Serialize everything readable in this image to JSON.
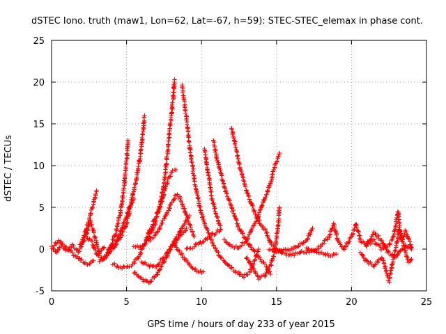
{
  "chart_data": {
    "type": "scatter",
    "title": "dSTEC Iono. truth (maw1, Lon=62, Lat=-67, h=59): STEC-STEC_elemax in phase cont.",
    "xlabel": "GPS time / hours of day 233 of year 2015",
    "ylabel": "dSTEC  / TECUs",
    "xlim": [
      0,
      25
    ],
    "ylim": [
      -5,
      25
    ],
    "xticks": [
      "0",
      "5",
      "10",
      "15",
      "20",
      "25"
    ],
    "yticks": [
      "-5",
      "0",
      "5",
      "10",
      "15",
      "20",
      "25"
    ],
    "grid": true,
    "marker": "plus",
    "colors": {
      "points": "#ff0000",
      "axes": "#000000",
      "grid": "#a0a0a0"
    },
    "series": [
      {
        "values": [
          [
            0,
            0.3
          ],
          [
            0.3,
            -0.4
          ],
          [
            0.6,
            0.5
          ],
          [
            1.0,
            -0.2
          ],
          [
            1.4,
            0.4
          ],
          [
            1.8,
            -0.3
          ],
          [
            2.2,
            1.2
          ],
          [
            2.6,
            3.3
          ],
          [
            2.9,
            1.5
          ],
          [
            3.2,
            -0.5
          ],
          [
            3.5,
            0.2
          ]
        ]
      },
      {
        "values": [
          [
            0.2,
            0.5
          ],
          [
            0.5,
            1.0
          ],
          [
            0.9,
            0.2
          ],
          [
            1.3,
            -0.4
          ],
          [
            1.7,
            -1.0
          ],
          [
            2.1,
            -1.5
          ],
          [
            2.5,
            -1.8
          ],
          [
            2.8,
            -1.4
          ]
        ]
      },
      {
        "values": [
          [
            1.9,
            0.4
          ],
          [
            2.2,
            1.8
          ],
          [
            2.5,
            3.5
          ],
          [
            2.8,
            5.5
          ],
          [
            3.0,
            7.0
          ]
        ]
      },
      {
        "values": [
          [
            2.3,
            1.5
          ],
          [
            2.7,
            0.8
          ],
          [
            3.0,
            -0.5
          ],
          [
            3.4,
            -1.2
          ],
          [
            3.8,
            -0.6
          ],
          [
            4.2,
            0.5
          ],
          [
            4.6,
            2.0
          ],
          [
            4.9,
            3.5
          ],
          [
            5.2,
            5.0
          ],
          [
            5.5,
            6.0
          ]
        ]
      },
      {
        "values": [
          [
            3.2,
            -1.5
          ],
          [
            3.6,
            -0.8
          ],
          [
            4.0,
            0.5
          ],
          [
            4.3,
            2.0
          ],
          [
            4.6,
            4.5
          ],
          [
            4.8,
            7.0
          ],
          [
            5.0,
            10.5
          ],
          [
            5.1,
            13.0
          ]
        ]
      },
      {
        "values": [
          [
            3.8,
            -0.2
          ],
          [
            4.2,
            0.3
          ],
          [
            4.6,
            1.5
          ],
          [
            5.0,
            3.0
          ],
          [
            5.3,
            5.5
          ],
          [
            5.6,
            8.0
          ],
          [
            5.9,
            11.0
          ],
          [
            6.1,
            14.0
          ],
          [
            6.2,
            16.0
          ]
        ]
      },
      {
        "values": [
          [
            4.1,
            -1.8
          ],
          [
            4.6,
            -2.2
          ],
          [
            5.0,
            -2.2
          ],
          [
            5.4,
            -1.8
          ],
          [
            5.8,
            -1.0
          ],
          [
            6.2,
            0.5
          ],
          [
            6.6,
            2.5
          ],
          [
            7.0,
            4.0
          ],
          [
            7.4,
            6.0
          ],
          [
            7.7,
            8.0
          ],
          [
            8.0,
            9.2
          ],
          [
            8.3,
            9.5
          ]
        ]
      },
      {
        "values": [
          [
            5.5,
            0.4
          ],
          [
            6.0,
            0.2
          ],
          [
            6.5,
            1.5
          ],
          [
            6.9,
            3.0
          ],
          [
            7.2,
            5.0
          ],
          [
            7.5,
            8.0
          ],
          [
            7.7,
            11.0
          ],
          [
            7.9,
            14.5
          ],
          [
            8.1,
            18.0
          ],
          [
            8.2,
            20.3
          ]
        ]
      },
      {
        "values": [
          [
            5.5,
            -2.8
          ],
          [
            6.0,
            -3.5
          ],
          [
            6.5,
            -4.1
          ],
          [
            7.0,
            -3.0
          ],
          [
            7.5,
            -1.5
          ],
          [
            8.0,
            0.3
          ],
          [
            8.5,
            2.0
          ],
          [
            9.0,
            3.5
          ],
          [
            9.2,
            4.0
          ]
        ]
      },
      {
        "values": [
          [
            6.0,
            -1.5
          ],
          [
            6.5,
            -2.0
          ],
          [
            7.0,
            -2.0
          ],
          [
            7.5,
            -1.0
          ],
          [
            8.0,
            0.2
          ],
          [
            8.5,
            1.5
          ],
          [
            9.0,
            2.5
          ]
        ]
      },
      {
        "values": [
          [
            6.5,
            1.0
          ],
          [
            6.8,
            1.5
          ],
          [
            7.2,
            2.5
          ],
          [
            7.6,
            4.0
          ],
          [
            8.0,
            5.5
          ],
          [
            8.3,
            6.5
          ],
          [
            8.6,
            6.0
          ],
          [
            9.0,
            4.0
          ],
          [
            9.5,
            1.5
          ]
        ]
      },
      {
        "values": [
          [
            8.7,
            19.5
          ],
          [
            8.9,
            17.0
          ],
          [
            9.1,
            14.0
          ],
          [
            9.3,
            11.0
          ],
          [
            9.6,
            7.5
          ],
          [
            9.9,
            5.0
          ],
          [
            10.3,
            2.5
          ],
          [
            10.8,
            0.5
          ],
          [
            11.3,
            -1.0
          ],
          [
            11.8,
            -2.0
          ],
          [
            12.3,
            -2.7
          ],
          [
            12.8,
            -3.2
          ],
          [
            13.2,
            -2.8
          ],
          [
            13.5,
            -1.5
          ],
          [
            13.8,
            0.0
          ]
        ]
      },
      {
        "values": [
          [
            8.2,
            0.5
          ],
          [
            8.6,
            -0.5
          ],
          [
            9.0,
            -1.5
          ],
          [
            9.4,
            -2.3
          ],
          [
            9.8,
            -2.7
          ],
          [
            10.1,
            -2.7
          ]
        ]
      },
      {
        "values": [
          [
            9.0,
            0.0
          ],
          [
            9.5,
            0.3
          ],
          [
            10.0,
            0.8
          ],
          [
            10.5,
            1.5
          ],
          [
            11.0,
            2.0
          ],
          [
            11.3,
            2.5
          ],
          [
            11.0,
            4.0
          ],
          [
            10.7,
            6.0
          ],
          [
            10.5,
            8.5
          ],
          [
            10.3,
            10.5
          ],
          [
            10.2,
            12.0
          ]
        ]
      },
      {
        "values": [
          [
            10.8,
            13.0
          ],
          [
            11.0,
            11.0
          ],
          [
            11.3,
            9.0
          ],
          [
            11.6,
            7.0
          ],
          [
            12.0,
            5.0
          ],
          [
            12.4,
            3.0
          ],
          [
            12.8,
            1.5
          ],
          [
            13.3,
            0.2
          ],
          [
            13.8,
            -1.0
          ],
          [
            14.3,
            -2.0
          ],
          [
            14.6,
            -3.0
          ]
        ]
      },
      {
        "values": [
          [
            12.0,
            14.5
          ],
          [
            12.3,
            12.0
          ],
          [
            12.6,
            9.5
          ],
          [
            13.0,
            7.0
          ],
          [
            13.4,
            5.0
          ],
          [
            13.8,
            3.5
          ],
          [
            14.3,
            2.0
          ],
          [
            14.7,
            0.5
          ],
          [
            15.0,
            0.0
          ]
        ]
      },
      {
        "values": [
          [
            11.5,
            1.0
          ],
          [
            12.0,
            0.3
          ],
          [
            12.5,
            0.3
          ],
          [
            13.0,
            1.0
          ],
          [
            13.4,
            2.5
          ],
          [
            13.8,
            4.0
          ],
          [
            14.2,
            6.0
          ],
          [
            14.6,
            8.0
          ],
          [
            14.9,
            10.0
          ],
          [
            15.2,
            11.5
          ]
        ]
      },
      {
        "values": [
          [
            13.0,
            -1.0
          ],
          [
            13.5,
            -2.5
          ],
          [
            13.8,
            -3.5
          ],
          [
            14.2,
            -3.2
          ],
          [
            14.6,
            -2.0
          ],
          [
            14.9,
            0.0
          ],
          [
            15.1,
            2.5
          ],
          [
            15.2,
            5.0
          ]
        ]
      },
      {
        "values": [
          [
            14.5,
            0.0
          ],
          [
            15.0,
            -0.3
          ],
          [
            15.5,
            -0.2
          ],
          [
            16.0,
            0.0
          ],
          [
            16.5,
            0.5
          ],
          [
            17.0,
            1.0
          ],
          [
            17.4,
            2.5
          ]
        ]
      },
      {
        "values": [
          [
            15.0,
            0.0
          ],
          [
            15.5,
            -0.5
          ],
          [
            16.0,
            -0.7
          ],
          [
            16.5,
            -0.5
          ],
          [
            17.0,
            -0.3
          ],
          [
            17.5,
            -0.2
          ],
          [
            18.0,
            -0.5
          ],
          [
            18.5,
            -0.7
          ],
          [
            19.0,
            -0.6
          ]
        ]
      },
      {
        "values": [
          [
            17.0,
            0.2
          ],
          [
            17.5,
            -0.3
          ],
          [
            18.0,
            0.5
          ],
          [
            18.5,
            1.5
          ],
          [
            18.8,
            3.0
          ],
          [
            19.1,
            1.0
          ],
          [
            19.5,
            0.0
          ],
          [
            20.0,
            1.5
          ],
          [
            20.3,
            3.0
          ],
          [
            20.6,
            1.0
          ],
          [
            21.0,
            0.5
          ],
          [
            21.5,
            2.0
          ],
          [
            22.0,
            1.0
          ],
          [
            22.5,
            -0.5
          ],
          [
            23.0,
            -1.0
          ],
          [
            23.5,
            0.5
          ],
          [
            24.0,
            0.0
          ]
        ]
      },
      {
        "values": [
          [
            20.6,
            -0.5
          ],
          [
            21.0,
            -1.5
          ],
          [
            21.5,
            -2.0
          ],
          [
            22.0,
            -1.0
          ],
          [
            22.3,
            -2.5
          ],
          [
            22.5,
            -3.8
          ],
          [
            22.7,
            -2.0
          ],
          [
            23.0,
            0.5
          ],
          [
            23.2,
            2.5
          ],
          [
            23.4,
            1.0
          ],
          [
            23.8,
            -1.5
          ],
          [
            24.0,
            -1.2
          ]
        ]
      },
      {
        "values": [
          [
            21.0,
            0.5
          ],
          [
            21.5,
            1.0
          ],
          [
            22.0,
            0.0
          ],
          [
            22.5,
            0.5
          ],
          [
            22.8,
            1.5
          ],
          [
            23.1,
            4.5
          ],
          [
            23.3,
            1.0
          ],
          [
            23.6,
            2.2
          ],
          [
            24.0,
            0.2
          ]
        ]
      }
    ]
  }
}
